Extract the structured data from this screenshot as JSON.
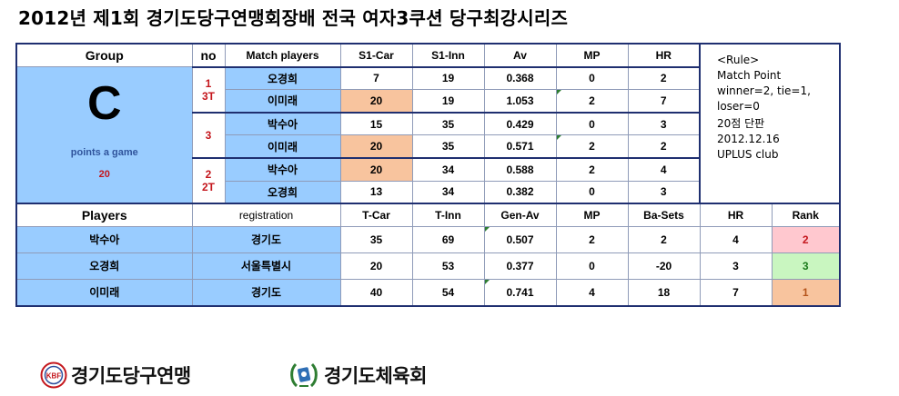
{
  "title": "2012년 제1회 경기도당구연맹회장배 전국 여자3쿠션 당구최강시리즈",
  "match_header": {
    "group": "Group",
    "no": "no",
    "players": "Match players",
    "s1car": "S1-Car",
    "s1inn": "S1-Inn",
    "av": "Av",
    "mp": "MP",
    "hr": "HR"
  },
  "group": {
    "letter": "C",
    "points_label": "points a game",
    "points_value": "20"
  },
  "matches": [
    {
      "no_line1": "1",
      "no_line2": "3T",
      "rows": [
        {
          "player": "오경희",
          "car": "7",
          "inn": "19",
          "av": "0.368",
          "mp": "0",
          "hr": "2"
        },
        {
          "player": "이미래",
          "car": "20",
          "inn": "19",
          "av": "1.053",
          "mp": "2",
          "hr": "7"
        }
      ]
    },
    {
      "no_line1": "3",
      "no_line2": "",
      "rows": [
        {
          "player": "박수아",
          "car": "15",
          "inn": "35",
          "av": "0.429",
          "mp": "0",
          "hr": "3"
        },
        {
          "player": "이미래",
          "car": "20",
          "inn": "35",
          "av": "0.571",
          "mp": "2",
          "hr": "2"
        }
      ]
    },
    {
      "no_line1": "2",
      "no_line2": "2T",
      "rows": [
        {
          "player": "박수아",
          "car": "20",
          "inn": "34",
          "av": "0.588",
          "mp": "2",
          "hr": "4"
        },
        {
          "player": "오경희",
          "car": "13",
          "inn": "34",
          "av": "0.382",
          "mp": "0",
          "hr": "3"
        }
      ]
    }
  ],
  "standings_header": {
    "players": "Players",
    "registration": "registration",
    "tcar": "T-Car",
    "tinn": "T-Inn",
    "genav": "Gen-Av",
    "mp": "MP",
    "basets": "Ba-Sets",
    "hr": "HR",
    "rank": "Rank"
  },
  "standings": [
    {
      "player": "박수아",
      "reg": "경기도",
      "tcar": "35",
      "tinn": "69",
      "genav": "0.507",
      "mp": "2",
      "basets": "2",
      "hr": "4",
      "rank": "2"
    },
    {
      "player": "오경희",
      "reg": "서울특별시",
      "tcar": "20",
      "tinn": "53",
      "genav": "0.377",
      "mp": "0",
      "basets": "-20",
      "hr": "3",
      "rank": "3"
    },
    {
      "player": "이미래",
      "reg": "경기도",
      "tcar": "40",
      "tinn": "54",
      "genav": "0.741",
      "mp": "4",
      "basets": "18",
      "hr": "7",
      "rank": "1"
    }
  ],
  "rules": {
    "line1": "<Rule>",
    "line2": "Match Point",
    "line3": "winner=2, tie=1,",
    "line4": "loser=0",
    "line5": "20점 단판",
    "line6": "2012.12.16",
    "line7": "UPLUS club"
  },
  "logos": {
    "federation": "경기도당구연맹",
    "federation_badge": "KBF",
    "sports_council": "경기도체육회"
  },
  "colors": {
    "header_blue": "#99ccff",
    "winner_orange": "#f8c49e",
    "rank_pink": "#ffc8cf",
    "rank_green": "#c9f6c0",
    "accent_red": "#c4161c",
    "border_navy": "#1f2f70"
  }
}
